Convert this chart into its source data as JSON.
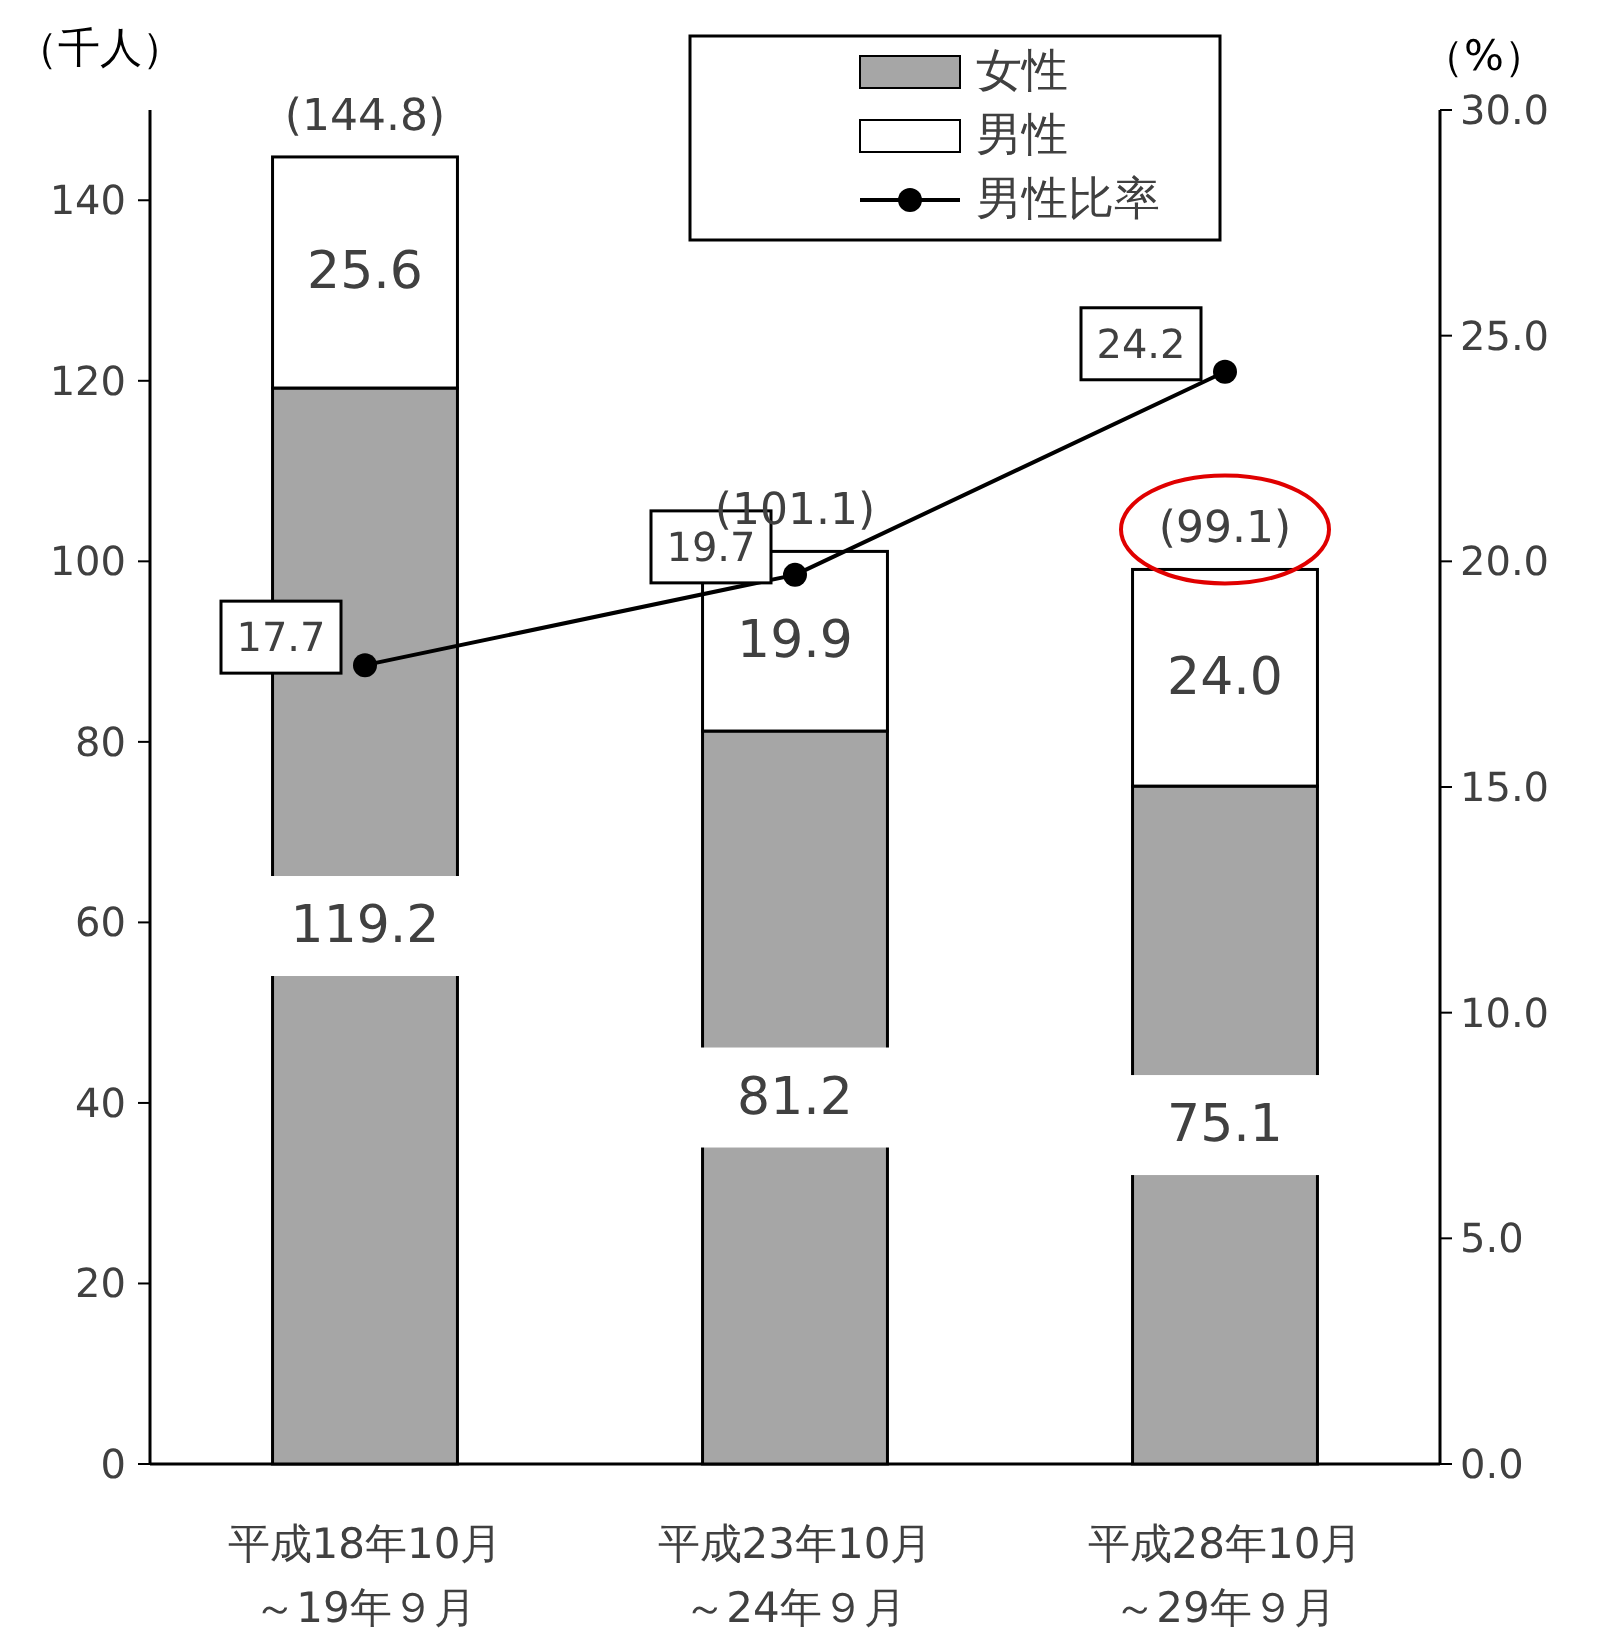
{
  "chart_data": {
    "type": "bar",
    "stacked": true,
    "categories": [
      "平成18年10月～19年９月",
      "平成23年10月～24年９月",
      "平成28年10月～29年９月"
    ],
    "series": [
      {
        "name": "女性",
        "color": "#a6a6a6",
        "values": [
          119.2,
          81.2,
          75.1
        ],
        "value_labels": [
          "119.2",
          "81.2",
          "75.1"
        ]
      },
      {
        "name": "男性",
        "color": "#ffffff",
        "values": [
          25.6,
          19.9,
          24.0
        ],
        "value_labels": [
          "25.6",
          "19.9",
          "24.0"
        ]
      },
      {
        "name": "男性比率",
        "type": "line",
        "axis": "y2",
        "color": "#000000",
        "marker": "circle",
        "values": [
          17.7,
          19.7,
          24.2
        ],
        "value_labels": [
          "17.7",
          "19.7",
          "24.2"
        ]
      }
    ],
    "totals": [
      "(144.8)",
      "(101.1)",
      "(99.1)"
    ],
    "ylabel": "（千人）",
    "y2label": "（%）",
    "ylim": [
      0,
      150
    ],
    "yticks": [
      0,
      20,
      40,
      60,
      80,
      100,
      120,
      140
    ],
    "y2lim": [
      0,
      30
    ],
    "y2ticks": [
      {
        "value": 0,
        "label": "0.0"
      },
      {
        "value": 5,
        "label": "5.0"
      },
      {
        "value": 10,
        "label": "10.0"
      },
      {
        "value": 15,
        "label": "15.0"
      },
      {
        "value": 20,
        "label": "20.0"
      },
      {
        "value": 25,
        "label": "25.0"
      },
      {
        "value": 30,
        "label": "30.0"
      }
    ],
    "legend": "top right",
    "grid": false
  }
}
